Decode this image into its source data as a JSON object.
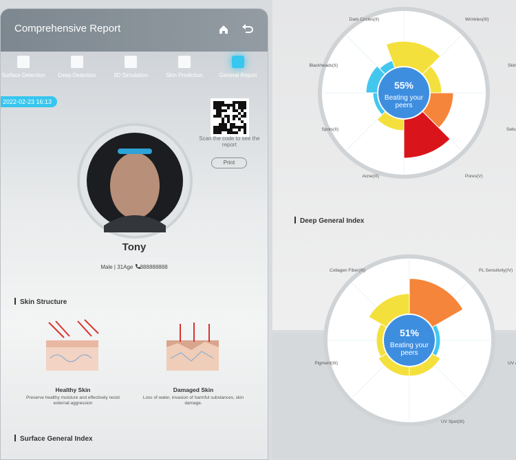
{
  "header": {
    "title": "Comprehensive Report"
  },
  "tabs": [
    "Surface Detection",
    "Deep Detection",
    "3D Simulation",
    "Skin Prediction",
    "General Report"
  ],
  "timestamp": "2022-02-23 16:13",
  "qr": {
    "caption": "Scan the code to see the report",
    "button": "Print"
  },
  "profile": {
    "name": "Tony",
    "details": "Male | 31Age",
    "phone": "888888888"
  },
  "skin_structure": {
    "heading": "Skin Structure",
    "items": [
      {
        "title": "Healthy Skin",
        "description": "Preserve healthy moisture and effectively resist external aggression"
      },
      {
        "title": "Damaged Skin",
        "description": "Loss of water, invasion of harmful substances, skin damage."
      }
    ]
  },
  "surface_general_index": {
    "heading": "Surface General Index"
  },
  "surface_chart": {
    "score": "55%",
    "caption": "Beating your peers",
    "labels": [
      "Dark Circles(II)",
      "Wrinkles(III)",
      "Skin",
      "Blackheads(II)",
      "Sebu",
      "Spots(II)",
      "Acne(III)",
      "Pores(V)"
    ]
  },
  "deep_general_index": {
    "heading": "Deep General Index"
  },
  "deep_chart": {
    "score": "51%",
    "caption": "Beating your peers",
    "labels": [
      "Collagen Fiber(III)",
      "PL Sensitivity(IV)",
      "Pigment(III)",
      "UV A",
      "UV Spot(III)"
    ]
  }
}
